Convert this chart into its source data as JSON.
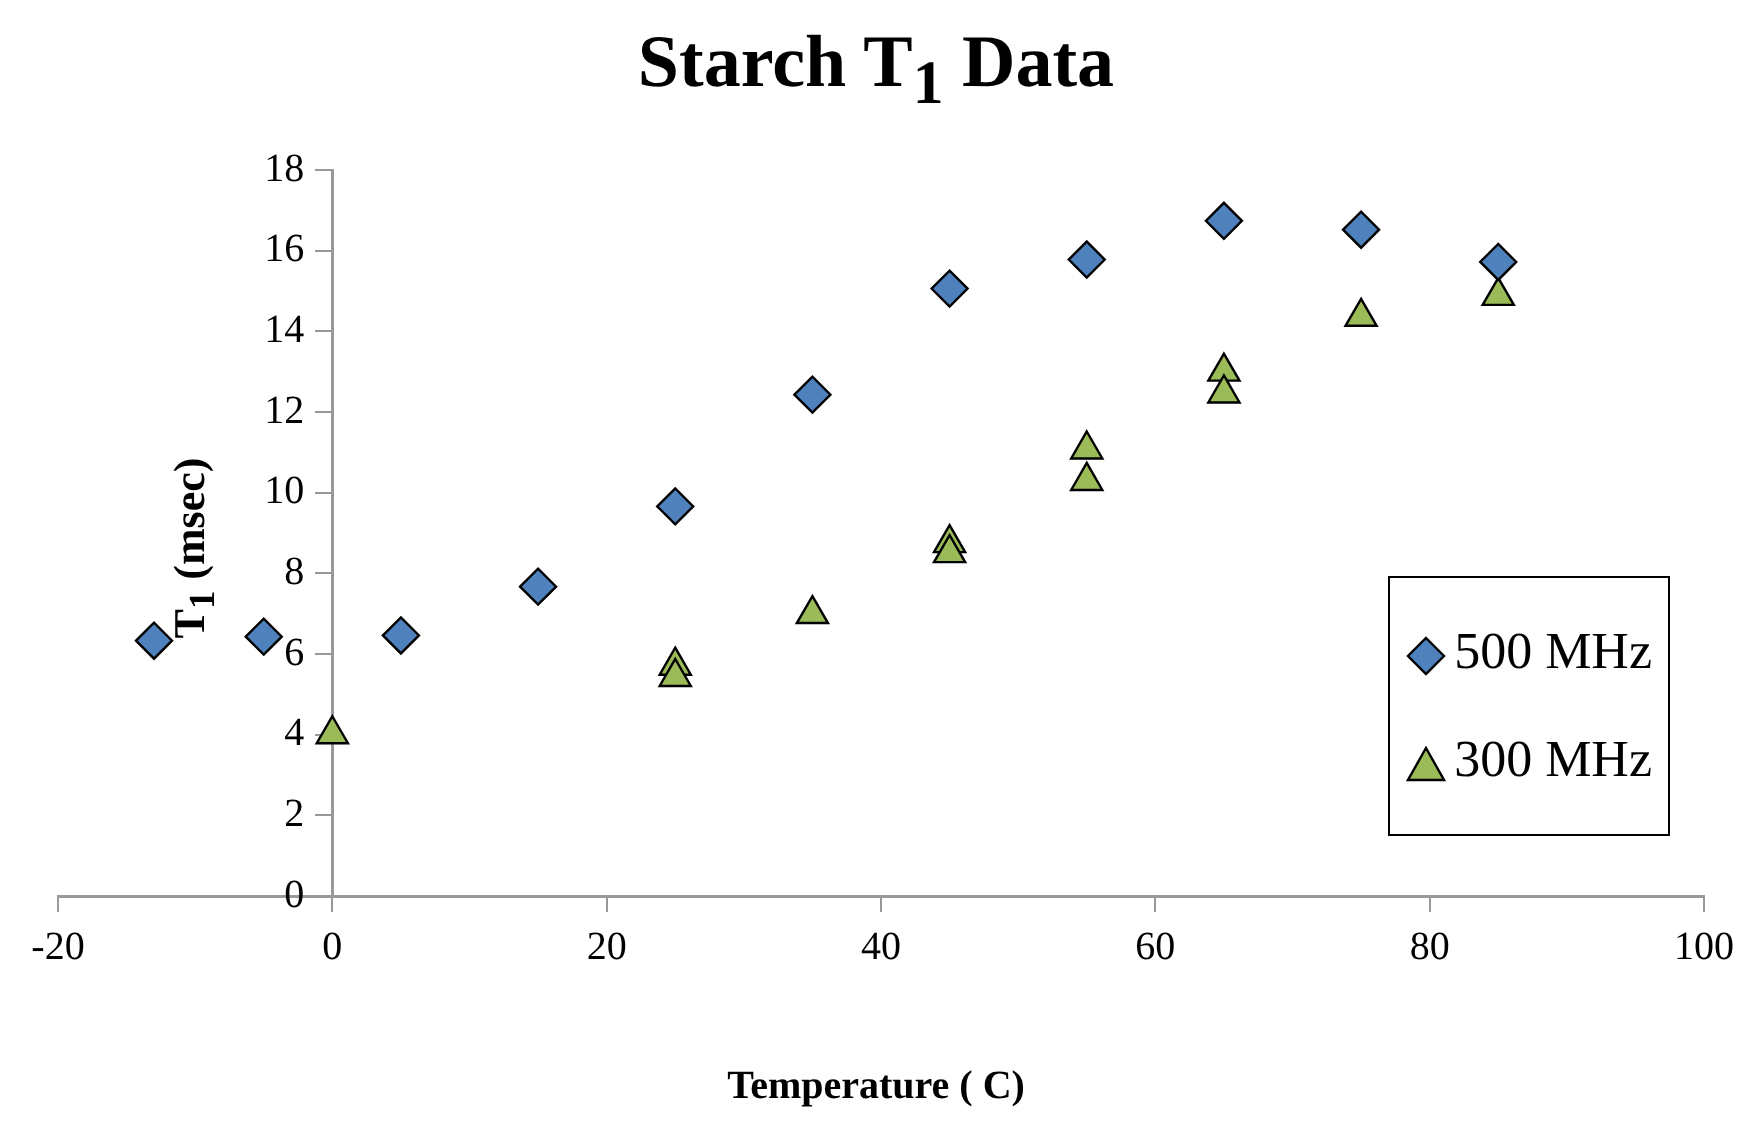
{
  "chart_data": {
    "type": "scatter",
    "title": "Starch T$_{1}$ Data",
    "xlabel": "Temperature ( C)",
    "ylabel": "T$_{1}$ (msec)",
    "xlim": [
      -20,
      100
    ],
    "xticks": [
      -20,
      0,
      20,
      40,
      60,
      80,
      100
    ],
    "ylim": [
      0,
      18
    ],
    "yticks": [
      0,
      2,
      4,
      6,
      8,
      10,
      12,
      14,
      16,
      18
    ],
    "grid": false,
    "legend": "right",
    "series": [
      {
        "name": "500 MHz",
        "color": "#4f81bd",
        "marker": "diamond",
        "x": [
          -13,
          -5,
          5,
          15,
          25,
          35,
          45,
          55,
          65,
          75,
          85
        ],
        "values": [
          6.33,
          6.43,
          6.46,
          7.67,
          9.66,
          12.43,
          15.06,
          15.78,
          16.74,
          16.52,
          15.72
        ]
      },
      {
        "name": "300 MHz",
        "color": "#9bbb59",
        "marker": "triangle",
        "x": [
          0,
          25,
          25,
          35,
          45,
          45,
          55,
          55,
          65,
          65,
          75,
          85
        ],
        "values": [
          4.01,
          5.71,
          5.43,
          6.99,
          8.75,
          8.5,
          11.07,
          10.29,
          13.0,
          12.46,
          14.36,
          14.88
        ]
      }
    ]
  }
}
